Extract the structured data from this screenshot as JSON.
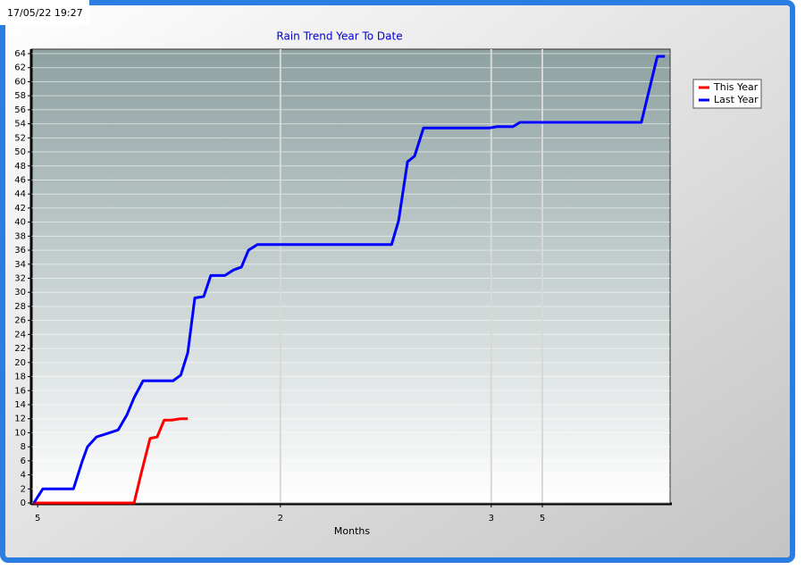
{
  "chart_data": {
    "type": "line",
    "timestamp": "17/05/22 19:27",
    "title": "Rain Trend Year To Date",
    "x_label": "Months",
    "xlim": [
      0,
      100
    ],
    "ylim": [
      0,
      64
    ],
    "xticks": [
      {
        "value": 1,
        "label": "5"
      },
      {
        "value": 39,
        "label": "2"
      },
      {
        "value": 72,
        "label": "3"
      },
      {
        "value": 80,
        "label": "5"
      }
    ],
    "yticks": [
      0,
      2,
      4,
      6,
      8,
      10,
      12,
      14,
      16,
      18,
      20,
      22,
      24,
      26,
      28,
      30,
      32,
      34,
      36,
      38,
      40,
      42,
      44,
      46,
      48,
      50,
      52,
      54,
      56,
      58,
      60,
      62,
      64
    ],
    "grid": true,
    "legend": "right",
    "series": [
      {
        "name": "This Year",
        "color": "#ff0000",
        "x": [
          0.4,
          16.1,
          17.2,
          18.6,
          19.7,
          20.8,
          22,
          23.4,
          24.5
        ],
        "values": [
          0,
          0,
          4.2,
          9.2,
          9.4,
          11.8,
          11.8,
          12,
          12
        ]
      },
      {
        "name": "Last Year",
        "color": "#0000ff",
        "x": [
          0.4,
          1.8,
          6.6,
          8,
          8.8,
          10.2,
          11.6,
          13.6,
          15,
          16.1,
          17.5,
          22.2,
          23.4,
          24.5,
          25.6,
          27,
          28.1,
          30.3,
          31.7,
          32.9,
          34,
          35.4,
          56.4,
          57.5,
          58.9,
          60,
          61.4,
          71.7,
          72.9,
          75.4,
          76.5,
          95.5,
          98,
          99.2
        ],
        "values": [
          0,
          2,
          2,
          6,
          8,
          9.4,
          9.8,
          10.4,
          12.6,
          15,
          17.4,
          17.4,
          18.2,
          21.4,
          29.2,
          29.4,
          32.4,
          32.4,
          33.2,
          33.6,
          36,
          36.8,
          36.8,
          40.2,
          48.6,
          49.4,
          53.4,
          53.4,
          53.6,
          53.6,
          54.2,
          54.2,
          63.6,
          63.6
        ]
      }
    ]
  }
}
